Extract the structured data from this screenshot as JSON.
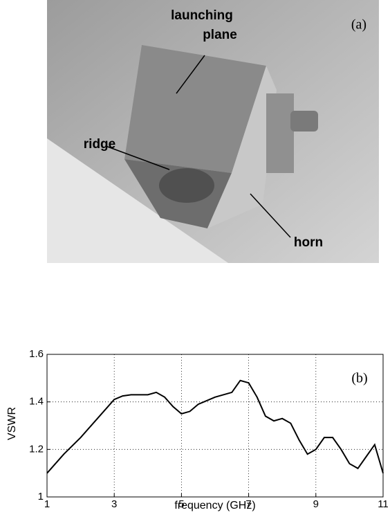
{
  "photo": {
    "panel_label": "(a)",
    "labels": [
      "launching",
      "plane",
      "ridge",
      "horn"
    ]
  },
  "chart_data": {
    "type": "line",
    "panel_label": "(b)",
    "x_label": "frequency (GHz)",
    "y_label": "VSWR",
    "x": [
      1,
      1.5,
      2,
      2.5,
      3,
      3.25,
      3.5,
      4,
      4.25,
      4.5,
      4.75,
      5,
      5.25,
      5.5,
      6,
      6.5,
      6.75,
      7,
      7.25,
      7.5,
      7.75,
      8,
      8.25,
      8.5,
      8.75,
      9,
      9.25,
      9.5,
      9.75,
      10,
      10.25,
      10.5,
      10.75,
      11
    ],
    "series": [
      {
        "color": "#000000",
        "values": [
          1.1,
          1.18,
          1.25,
          1.33,
          1.41,
          1.425,
          1.43,
          1.43,
          1.44,
          1.42,
          1.38,
          1.35,
          1.36,
          1.39,
          1.42,
          1.44,
          1.49,
          1.48,
          1.42,
          1.34,
          1.32,
          1.33,
          1.31,
          1.24,
          1.18,
          1.2,
          1.25,
          1.25,
          1.2,
          1.14,
          1.12,
          1.17,
          1.22,
          1.1
        ]
      }
    ],
    "xlim": [
      1,
      11
    ],
    "ylim": [
      1,
      1.6
    ],
    "xticks": [
      1,
      3,
      5,
      7,
      9,
      11
    ],
    "yticks": [
      1,
      1.2,
      1.4,
      1.6
    ],
    "grid": true
  }
}
